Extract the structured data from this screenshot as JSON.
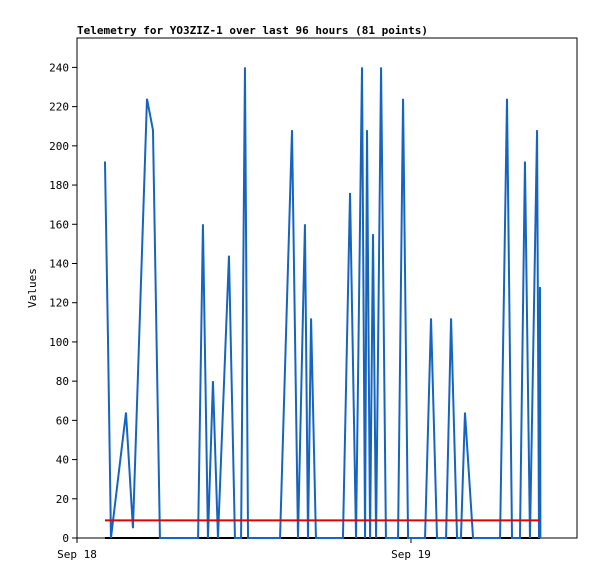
{
  "chart_data": {
    "type": "line",
    "title": "Telemetry for YO3ZIZ-1 over last 96 hours (81 points)",
    "ylabel": "Values",
    "xlim": [
      0,
      35.93
    ],
    "xticks": [
      {
        "value": 0,
        "label": "Sep 18"
      },
      {
        "value": 24,
        "label": "Sep 19"
      }
    ],
    "ylim": [
      0,
      255
    ],
    "yticks": [
      0,
      20,
      40,
      60,
      80,
      100,
      120,
      140,
      160,
      180,
      200,
      220,
      240
    ],
    "series": [
      {
        "color": "#000000",
        "x": [
          2.01,
          33.27
        ],
        "values": [
          0,
          0
        ]
      },
      {
        "color": "#1565c0",
        "x": [
          2.01,
          2.23,
          2.44,
          3.52,
          4.02,
          5.03,
          5.46,
          5.96,
          8.7,
          9.05,
          9.41,
          9.77,
          10.13,
          10.92,
          11.35,
          11.79,
          12.07,
          12.29,
          14.59,
          15.45,
          15.88,
          16.38,
          16.6,
          16.82,
          17.17,
          19.11,
          19.62,
          20.05,
          20.48,
          20.7,
          20.84,
          21.06,
          21.27,
          21.49,
          21.85,
          22.2,
          23.07,
          23.43,
          23.79,
          25.01,
          25.44,
          25.87,
          26.52,
          26.88,
          27.31,
          27.59,
          27.88,
          28.46,
          30.4,
          30.9,
          31.26,
          31.83,
          32.19,
          32.55,
          33.06,
          33.2,
          33.27,
          33.3
        ],
        "values": [
          192,
          100,
          0,
          64,
          5,
          224,
          208,
          0,
          0,
          160,
          0,
          80,
          0,
          144,
          0,
          0,
          240,
          0,
          0,
          208,
          0,
          160,
          0,
          112,
          0,
          0,
          176,
          0,
          240,
          0,
          208,
          0,
          155,
          0,
          240,
          0,
          0,
          224,
          0,
          0,
          112,
          0,
          0,
          112,
          0,
          0,
          64,
          0,
          0,
          224,
          0,
          0,
          192,
          0,
          208,
          0,
          128,
          0
        ]
      },
      {
        "color": "#e00000",
        "x": [
          2.01,
          33.27
        ],
        "values": [
          9,
          9
        ]
      }
    ]
  }
}
